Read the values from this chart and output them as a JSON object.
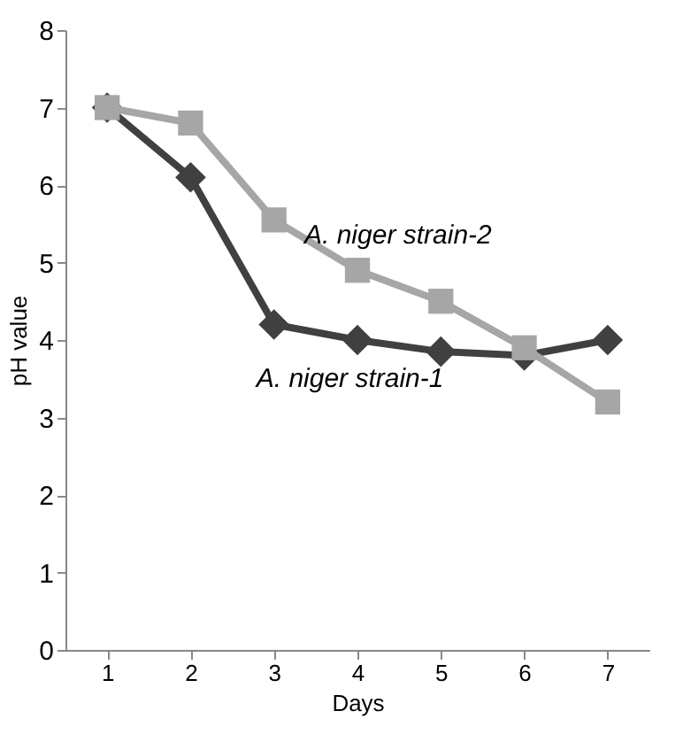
{
  "chart_data": {
    "type": "line",
    "xlabel": "Days",
    "ylabel": "pH value",
    "x": [
      1,
      2,
      3,
      4,
      5,
      6,
      7
    ],
    "xlim": [
      0.5,
      7.5
    ],
    "xticks": [
      1,
      2,
      3,
      4,
      5,
      6,
      7
    ],
    "ylim": [
      0,
      8
    ],
    "yticks": [
      0,
      1,
      2,
      3,
      4,
      5,
      6,
      7,
      8
    ],
    "grid": false,
    "legend": false,
    "series": [
      {
        "name": "A. niger strain-1",
        "color": "#404040",
        "marker": "diamond",
        "values": [
          7.0,
          6.1,
          4.2,
          4.0,
          3.85,
          3.8,
          4.0
        ]
      },
      {
        "name": "A. niger strain-2",
        "color": "#a6a6a6",
        "marker": "square",
        "values": [
          7.0,
          6.8,
          5.55,
          4.9,
          4.5,
          3.9,
          3.2
        ]
      }
    ]
  }
}
